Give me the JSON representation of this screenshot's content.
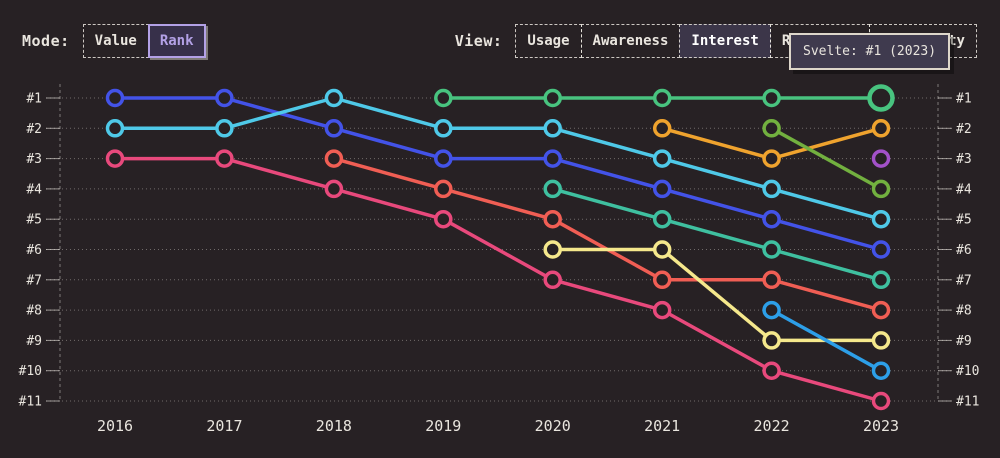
{
  "controls": {
    "mode": {
      "label": "Mode:",
      "options": [
        {
          "label": "Value",
          "selected": false
        },
        {
          "label": "Rank",
          "selected": true
        }
      ]
    },
    "view": {
      "label": "View:",
      "options": [
        {
          "label": "Usage",
          "selected": false
        },
        {
          "label": "Awareness",
          "selected": false
        },
        {
          "label": "Interest",
          "selected": true
        },
        {
          "label": "Retention",
          "selected": false
        },
        {
          "label": "Positivity",
          "selected": false
        }
      ]
    }
  },
  "tooltip": {
    "text": "Svelte: #1 (2023)"
  },
  "colors": {
    "background": "#272124",
    "text": "#e9e5de",
    "accent": "#b3a1e6"
  },
  "chart_data": {
    "type": "line",
    "variant": "bump-rank",
    "x": [
      "2016",
      "2017",
      "2018",
      "2019",
      "2020",
      "2021",
      "2022",
      "2023"
    ],
    "y_ticks": [
      "#1",
      "#2",
      "#3",
      "#4",
      "#5",
      "#6",
      "#7",
      "#8",
      "#9",
      "#10",
      "#11"
    ],
    "y_axis_inverted": true,
    "grid": "dotted-horizontal",
    "legend": "none",
    "hovered_point": {
      "series": "emerald-green",
      "year": "2023",
      "rank": 1,
      "tooltip": "Svelte: #1 (2023)"
    },
    "series": [
      {
        "id": "indigo-blue",
        "color": "#4353e8",
        "ranks": [
          1,
          1,
          2,
          3,
          3,
          4,
          5,
          6
        ]
      },
      {
        "id": "cyan",
        "color": "#4fc9e8",
        "ranks": [
          2,
          2,
          1,
          2,
          2,
          3,
          4,
          5
        ]
      },
      {
        "id": "pink",
        "color": "#e8497c",
        "ranks": [
          3,
          3,
          4,
          5,
          7,
          8,
          10,
          11
        ]
      },
      {
        "id": "salmon",
        "color": "#f05e54",
        "ranks": [
          null,
          null,
          3,
          4,
          5,
          7,
          7,
          8
        ]
      },
      {
        "id": "emerald-green",
        "color": "#48c37f",
        "ranks": [
          null,
          null,
          null,
          1,
          1,
          1,
          1,
          1
        ],
        "highlight_last": true
      },
      {
        "id": "teal",
        "color": "#3fc0a0",
        "ranks": [
          null,
          null,
          null,
          null,
          4,
          5,
          6,
          7
        ]
      },
      {
        "id": "yellow",
        "color": "#f5e88c",
        "ranks": [
          null,
          null,
          null,
          null,
          6,
          6,
          9,
          9
        ]
      },
      {
        "id": "orange",
        "color": "#efa32e",
        "ranks": [
          null,
          null,
          null,
          null,
          null,
          2,
          3,
          2
        ]
      },
      {
        "id": "lime-green",
        "color": "#72b03f",
        "ranks": [
          null,
          null,
          null,
          null,
          null,
          null,
          2,
          4
        ]
      },
      {
        "id": "dodger-blue",
        "color": "#2d9fe8",
        "ranks": [
          null,
          null,
          null,
          null,
          null,
          null,
          8,
          10
        ]
      },
      {
        "id": "purple",
        "color": "#a351c9",
        "ranks": [
          null,
          null,
          null,
          null,
          null,
          null,
          null,
          3
        ]
      }
    ]
  }
}
